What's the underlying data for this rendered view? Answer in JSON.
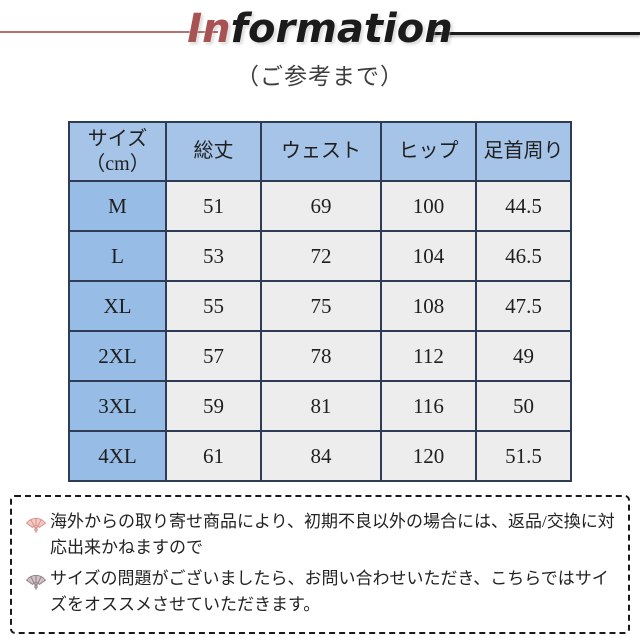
{
  "title": {
    "accent": "In",
    "rest": "formation",
    "subtitle": "（ご参考まで）"
  },
  "colors": {
    "accent_red": "#a85254",
    "rule_left": "#b5716d",
    "rule_right": "#1d1d1d",
    "table_border": "#2e3c55",
    "header_bg": "#a6c4e8",
    "size_col_bg": "#97bde6",
    "cell_bg": "#ededed"
  },
  "table": {
    "headers": [
      "サイズ\n（cm）",
      "総丈",
      "ウェスト",
      "ヒップ",
      "足首周り"
    ],
    "rows": [
      [
        "M",
        "51",
        "69",
        "100",
        "44.5"
      ],
      [
        "L",
        "53",
        "72",
        "104",
        "46.5"
      ],
      [
        "XL",
        "55",
        "75",
        "108",
        "47.5"
      ],
      [
        "2XL",
        "57",
        "78",
        "112",
        "49"
      ],
      [
        "3XL",
        "59",
        "81",
        "116",
        "50"
      ],
      [
        "4XL",
        "61",
        "84",
        "120",
        "51.5"
      ]
    ]
  },
  "notes": [
    {
      "icon": "fan-icon",
      "icon_fill": "#f3cbc6",
      "icon_stroke": "#d9928b",
      "text": "海外からの取り寄せ商品により、初期不良以外の場合には、返品/交換に対応出来かねますので"
    },
    {
      "icon": "fan-icon",
      "icon_fill": "#d2c3c9",
      "icon_stroke": "#96838b",
      "text": "サイズの問題がございましたら、お問い合わせいただき、こちらではサイズをオススメさせていただきます。"
    }
  ]
}
